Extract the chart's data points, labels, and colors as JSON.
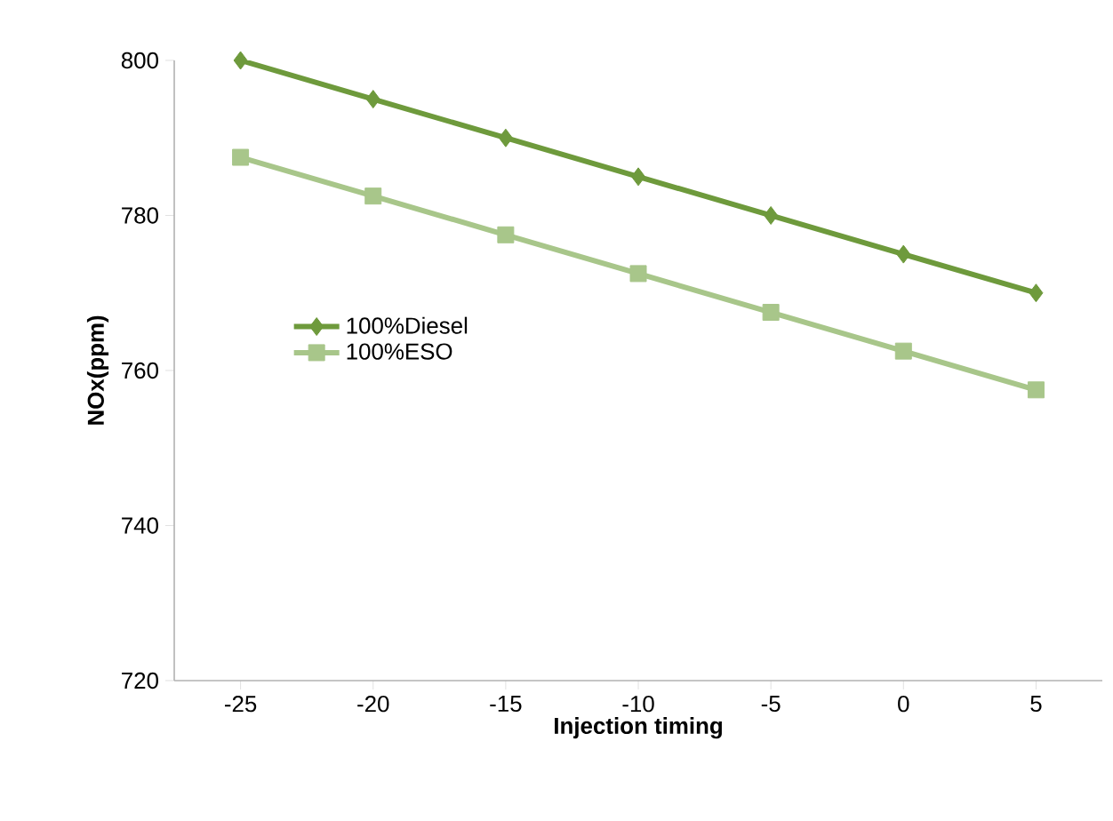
{
  "chart_data": {
    "type": "line",
    "xlabel": "Injection timing",
    "ylabel": "NOx(ppm)",
    "categories": [
      "-25",
      "-20",
      "-15",
      "-10",
      "-5",
      "0",
      "5"
    ],
    "series": [
      {
        "name": "100%Diesel",
        "color": "#6e9a3c",
        "marker": "diamond",
        "values": [
          800,
          795,
          790,
          785,
          780,
          775,
          770
        ]
      },
      {
        "name": "100%ESO",
        "color": "#a8c68a",
        "marker": "square",
        "values": [
          787.5,
          782.5,
          777.5,
          772.5,
          767.5,
          762.5,
          757.5
        ]
      }
    ],
    "ylim": [
      720,
      800
    ],
    "yticks": [
      720,
      740,
      760,
      780,
      800
    ],
    "grid": false,
    "legend": "left"
  }
}
